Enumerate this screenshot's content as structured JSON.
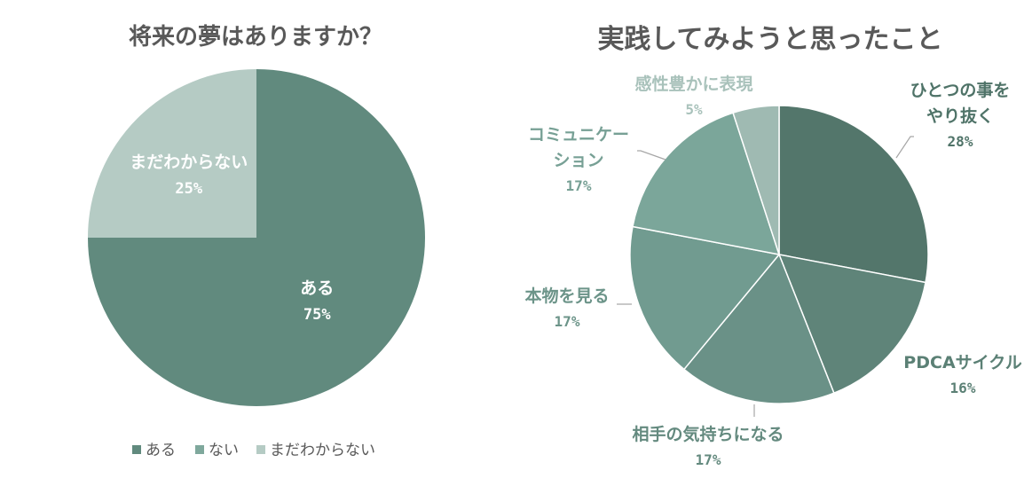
{
  "chart_data": [
    {
      "type": "pie",
      "title": "将来の夢はありますか？",
      "slices": [
        {
          "label": "ある",
          "value": 75,
          "display": "75%",
          "color": "#618a7e",
          "label_color": "#ffffff"
        },
        {
          "label": "ない",
          "value": 0,
          "display": "",
          "color": "#7fa89c",
          "label_color": "#ffffff"
        },
        {
          "label": "まだわからない",
          "value": 25,
          "display": "25%",
          "color": "#b5cbc4",
          "label_color": "#ffffff"
        }
      ],
      "legend": [
        "ある",
        "ない",
        "まだわからない"
      ],
      "legend_position": "bottom"
    },
    {
      "type": "pie",
      "title": "実践してみようと思ったこと",
      "slices": [
        {
          "label": "ひとつの事をやり抜く",
          "lines": [
            "ひとつの事を",
            "やり抜く"
          ],
          "value": 28,
          "display": "28%",
          "color": "#53766b",
          "label_color": "#4f7368"
        },
        {
          "label": "PDCAサイクル",
          "lines": [
            "PDCAサイクル"
          ],
          "value": 16,
          "display": "16%",
          "color": "#5f8479",
          "label_color": "#5b8075"
        },
        {
          "label": "相手の気持ちになる",
          "lines": [
            "相手の気持ちになる"
          ],
          "value": 17,
          "display": "17%",
          "color": "#6a9187",
          "label_color": "#648a7f"
        },
        {
          "label": "本物を見る",
          "lines": [
            "本物を見る"
          ],
          "value": 17,
          "display": "17%",
          "color": "#719b90",
          "label_color": "#6c9489"
        },
        {
          "label": "コミュニケーション",
          "lines": [
            "コミュニケー",
            "ション"
          ],
          "value": 17,
          "display": "17%",
          "color": "#7ba69a",
          "label_color": "#77a095"
        },
        {
          "label": "感性豊かに表現",
          "lines": [
            "感性豊かに表現"
          ],
          "value": 5,
          "display": "5%",
          "color": "#9fbab2",
          "label_color": "#a9c2bb"
        }
      ]
    }
  ]
}
